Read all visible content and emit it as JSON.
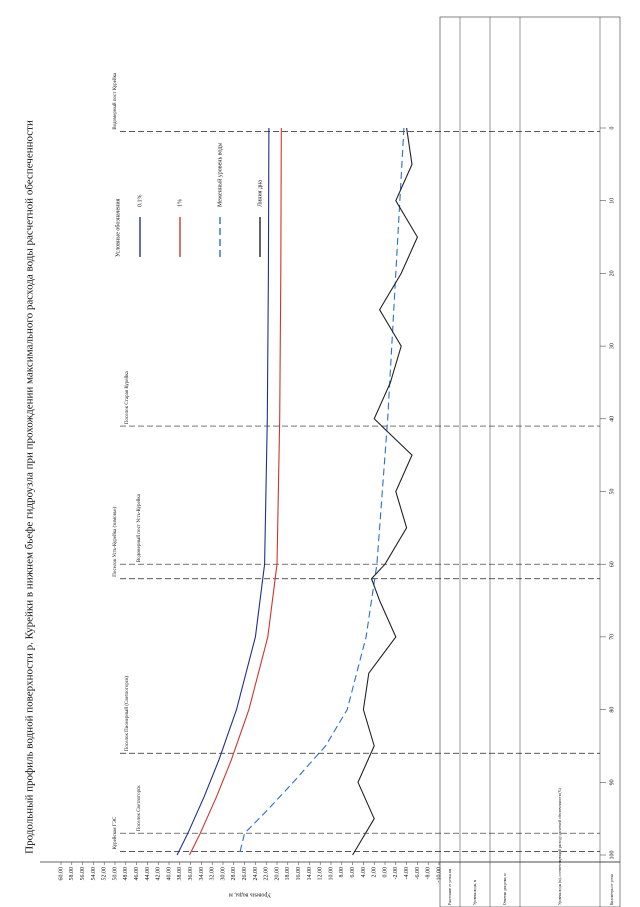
{
  "chart_data": {
    "type": "line",
    "title": "Продольный профиль водной поверхности р. Курейки в нижнем бьефе гидроузла при прохождении максимального расхода воды расчетной обеспеченности",
    "y_label": "Уровень воды, м",
    "x_label": "Километры от устья",
    "xlim": [
      100,
      0
    ],
    "xticks": [
      0,
      10,
      20,
      30,
      40,
      50,
      60,
      70,
      80,
      90,
      100
    ],
    "ylim": [
      -10,
      60
    ],
    "yticks": [
      {
        "value": 60,
        "label": "60.00"
      },
      {
        "value": 58,
        "label": "58.00"
      },
      {
        "value": 56,
        "label": "56.00"
      },
      {
        "value": 54,
        "label": "54.00"
      },
      {
        "value": 52,
        "label": "52.00"
      },
      {
        "value": 50,
        "label": "50.00"
      },
      {
        "value": 48,
        "label": "48.00"
      },
      {
        "value": 46,
        "label": "46.00"
      },
      {
        "value": 44,
        "label": "44.00"
      },
      {
        "value": 42,
        "label": "42.00"
      },
      {
        "value": 40,
        "label": "40.00"
      },
      {
        "value": 38,
        "label": "38.00"
      },
      {
        "value": 36,
        "label": "36.00"
      },
      {
        "value": 34,
        "label": "34.00"
      },
      {
        "value": 32,
        "label": "32.00"
      },
      {
        "value": 30,
        "label": "30.00"
      },
      {
        "value": 28,
        "label": "28.00"
      },
      {
        "value": 26,
        "label": "26.00"
      },
      {
        "value": 24,
        "label": "24.00"
      },
      {
        "value": 22,
        "label": "22.00"
      },
      {
        "value": 20,
        "label": "20.00"
      },
      {
        "value": 18,
        "label": "18.00"
      },
      {
        "value": 16,
        "label": "16.00"
      },
      {
        "value": 14,
        "label": "14.00"
      },
      {
        "value": 12,
        "label": "12.00"
      },
      {
        "value": 10,
        "label": "10.00"
      },
      {
        "value": 8,
        "label": "8.00"
      },
      {
        "value": 6,
        "label": "6.00"
      },
      {
        "value": 4,
        "label": "4.00"
      },
      {
        "value": 2,
        "label": "2.00"
      },
      {
        "value": 0,
        "label": "0.00"
      },
      {
        "value": -2,
        "label": "-2.00"
      },
      {
        "value": -4,
        "label": "-4.00"
      },
      {
        "value": -6,
        "label": "-6.00"
      },
      {
        "value": -8,
        "label": "-8.00"
      },
      {
        "value": -10,
        "label": "-10.00"
      }
    ],
    "series": [
      {
        "name": "0.1%",
        "color": "#1f2f8f",
        "dash": false,
        "x": [
          0,
          20,
          40,
          60,
          70,
          80,
          87,
          92,
          97,
          100
        ],
        "values": [
          21.5,
          21.6,
          21.8,
          22.3,
          24,
          27.5,
          30.8,
          33.5,
          36.5,
          38.5
        ]
      },
      {
        "name": "1%",
        "color": "#d0342c",
        "dash": false,
        "x": [
          0,
          20,
          40,
          60,
          70,
          80,
          87,
          92,
          97,
          100
        ],
        "values": [
          19.2,
          19.3,
          19.5,
          20,
          21.7,
          25.2,
          28.5,
          31.2,
          34.2,
          36.2
        ]
      },
      {
        "name": "Меженный уровень воды",
        "color": "#2a6fd0",
        "dash": true,
        "x": [
          0,
          20,
          40,
          60,
          70,
          80,
          85,
          90,
          94,
          97,
          100
        ],
        "values": [
          -3.5,
          -2,
          -0.5,
          1.5,
          3.5,
          7,
          11,
          17,
          22,
          26,
          27
        ]
      },
      {
        "name": "Линия дна",
        "color": "#222222",
        "dash": false,
        "x": [
          0,
          5,
          10,
          15,
          20,
          25,
          30,
          35,
          40,
          45,
          50,
          55,
          60,
          62,
          65,
          70,
          75,
          80,
          85,
          90,
          95,
          100
        ],
        "values": [
          -4,
          -5,
          -2,
          -6,
          -3,
          1,
          -3,
          -1,
          2,
          -5,
          -2,
          -4,
          0,
          2.5,
          1,
          -2,
          3,
          4,
          2,
          5,
          2,
          6
        ]
      }
    ],
    "legend_title": "Условные обозначения",
    "annotations": [
      {
        "text": "Водомерный пост Курейка",
        "x": 0.5
      },
      {
        "text": "Поселок Старая Курейка",
        "x": 41
      },
      {
        "text": "Водомерный пост Усть-Курейка",
        "x": 60
      },
      {
        "text": "Поселок Усть-Курейка (зимовье)",
        "x": 62
      },
      {
        "text": "Поселок Пионерный (Светлогорск)",
        "x": 86
      },
      {
        "text": "Поселок Светлогорск",
        "x": 97
      },
      {
        "text": "Курейская ГЭС",
        "x": 99.5
      }
    ],
    "table": {
      "rows": [
        "Расстояние от устья, км",
        "Уровень воды, м",
        "Отметки дна реки, м",
        "Уровень воды (м), соответствующий расходу расчетной обеспеченности (%)",
        "Километры от устья"
      ]
    }
  }
}
